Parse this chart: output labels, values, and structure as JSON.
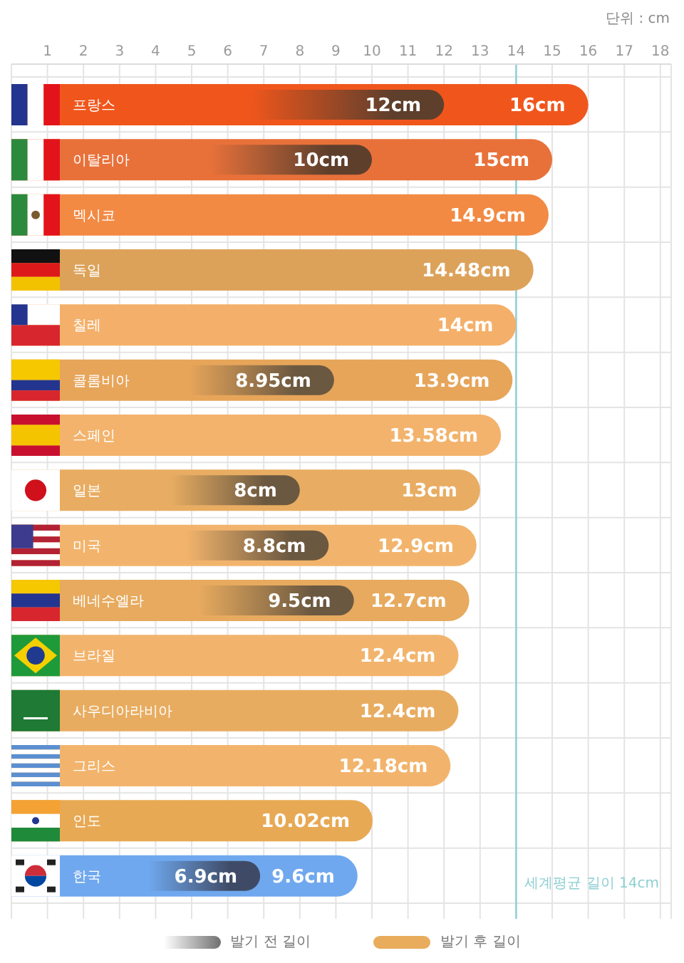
{
  "chart_data": {
    "type": "bar",
    "orientation": "horizontal",
    "categories": [
      "프랑스",
      "이탈리아",
      "멕시코",
      "독일",
      "칠레",
      "콜롬비아",
      "스페인",
      "일본",
      "미국",
      "베네수엘라",
      "브라질",
      "사우디아라비아",
      "그리스",
      "인도",
      "한국"
    ],
    "series": [
      {
        "name": "발기 전 길이",
        "color": "#707070",
        "values": [
          12,
          10,
          null,
          null,
          null,
          8.95,
          null,
          8,
          8.8,
          9.5,
          null,
          null,
          null,
          null,
          6.9
        ],
        "colors": [
          "#5e3f2c",
          "#5e3f2c",
          null,
          null,
          null,
          "#6b5840",
          null,
          "#6b5840",
          "#6b5840",
          "#6b5840",
          null,
          null,
          null,
          null,
          "#3f4b66"
        ],
        "value_labels": [
          "12cm",
          "10cm",
          null,
          null,
          null,
          "8.95cm",
          null,
          "8cm",
          "8.8cm",
          "9.5cm",
          null,
          null,
          null,
          null,
          "6.9cm"
        ]
      },
      {
        "name": "발기 후 길이",
        "color": "#e8ac5c",
        "values": [
          16,
          15,
          14.9,
          14.48,
          14,
          13.9,
          13.58,
          13,
          12.9,
          12.7,
          12.4,
          12.4,
          12.18,
          10.02,
          9.6
        ],
        "colors": [
          "#f0561c",
          "#e8713a",
          "#f28a44",
          "#dda25a",
          "#f4b06a",
          "#e7a55a",
          "#f3b36c",
          "#e8ad62",
          "#f2b46c",
          "#e7aa5e",
          "#f2b46c",
          "#e8ac60",
          "#f2b46c",
          "#e8a954",
          "#6fa8ee"
        ],
        "value_labels": [
          "16cm",
          "15cm",
          "14.9cm",
          "14.48cm",
          "14cm",
          "13.9cm",
          "13.58cm",
          "13cm",
          "12.9cm",
          "12.7cm",
          "12.4cm",
          "12.4cm",
          "12.18cm",
          "10.02cm",
          "9.6cm"
        ]
      }
    ],
    "xlim": [
      0,
      18.3
    ],
    "xticks": [
      1,
      2,
      3,
      4,
      5,
      6,
      7,
      8,
      9,
      10,
      11,
      12,
      13,
      14,
      15,
      16,
      17,
      18
    ],
    "ref_lines": [
      {
        "axis": "x",
        "value": 14,
        "label": "세계평균 길이 14cm",
        "color": "#8ecfd2"
      }
    ],
    "annotations": [
      "단위 : cm"
    ],
    "grid": true,
    "legend": "bottom"
  }
}
